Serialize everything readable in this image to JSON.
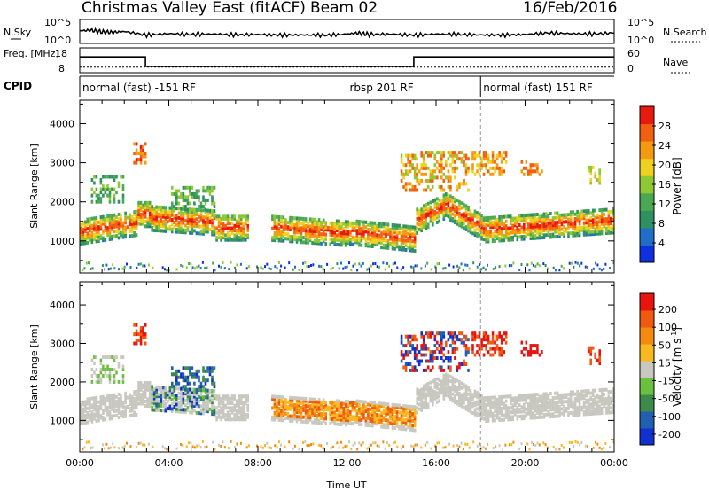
{
  "header": {
    "station": "Christmas Valley East (fitACF)",
    "beam": "Beam 02",
    "date": "16/Feb/2016"
  },
  "colors": {
    "power_scale": [
      "#1030e0",
      "#206ec8",
      "#2f9060",
      "#4aa855",
      "#90c834",
      "#f0d020",
      "#f59a10",
      "#f06010",
      "#e81a10"
    ],
    "velocity_scale": [
      "#1030d0",
      "#2060b0",
      "#3c8a4a",
      "#6cc040",
      "#c8c8c0",
      "#f8b820",
      "#f58a10",
      "#f05a10",
      "#e81410"
    ],
    "ground_scatter": "#c8c8c0"
  },
  "chart_data": [
    {
      "type": "line",
      "name": "nsky-nsearch",
      "left_label": "N.Sky",
      "right_label": "N.Search",
      "left_ticks": [
        "10^5",
        "10^0"
      ],
      "right_ticks": [
        "10^5",
        "10^0"
      ],
      "x_hours": [
        0,
        0.5,
        1,
        1.5,
        2,
        3,
        4,
        5,
        6,
        7,
        8,
        9,
        10,
        11,
        12,
        12.5,
        13,
        14,
        15,
        16,
        17,
        18,
        19,
        20,
        21,
        22,
        23,
        24
      ],
      "series": [
        {
          "values": [
            0.55,
            0.58,
            0.5,
            0.48,
            0.52,
            0.35,
            0.42,
            0.38,
            0.4,
            0.36,
            0.38,
            0.35,
            0.36,
            0.34,
            0.4,
            0.45,
            0.38,
            0.4,
            0.35,
            0.4,
            0.38,
            0.36,
            0.35,
            0.38,
            0.45,
            0.42,
            0.4,
            0.45
          ]
        }
      ]
    },
    {
      "type": "line",
      "name": "frequency-nave",
      "left_label": "Freq. [MHz]",
      "right_label": "Nave",
      "left_ticks": [
        "18",
        "8"
      ],
      "right_ticks": [
        "60",
        "0"
      ],
      "x_hours": [
        0,
        2.95,
        2.95,
        15,
        15,
        24
      ],
      "series": [
        {
          "values": [
            15,
            15,
            10.5,
            10.5,
            15,
            15
          ]
        }
      ],
      "nave_values": [
        13,
        13,
        13,
        13,
        13,
        13
      ]
    },
    {
      "type": "table",
      "name": "cpid",
      "label": "CPID",
      "segments": [
        {
          "start": 0,
          "end": 12,
          "label": "normal (fast) -151 RF"
        },
        {
          "start": 12,
          "end": 18,
          "label": "rbsp 201 RF"
        },
        {
          "start": 18,
          "end": 24,
          "label": "normal (fast) 151 RF"
        }
      ]
    },
    {
      "type": "heatmap",
      "name": "power",
      "ylabel": "Slant Range [km]",
      "xlabel": "",
      "xlim": [
        0,
        24
      ],
      "ylim": [
        180,
        4600
      ],
      "yticks": [
        1000,
        2000,
        3000,
        4000
      ],
      "colorbar_label": "Power [dB]",
      "colorbar_ticks": [
        4,
        8,
        12,
        16,
        20,
        24,
        28
      ],
      "colorbar_range": [
        0,
        32
      ]
    },
    {
      "type": "heatmap",
      "name": "velocity",
      "ylabel": "Slant Range [km]",
      "xlabel": "Time UT",
      "xlim": [
        0,
        24
      ],
      "ylim": [
        180,
        4600
      ],
      "yticks": [
        1000,
        2000,
        3000,
        4000
      ],
      "xticks": [
        "00:00",
        "04:00",
        "08:00",
        "12:00",
        "16:00",
        "20:00",
        "00:00"
      ],
      "colorbar_label": "Velocity [m s^-1]",
      "colorbar_ticks": [
        200,
        100,
        50,
        15,
        -15,
        -50,
        -100,
        -200
      ]
    }
  ]
}
